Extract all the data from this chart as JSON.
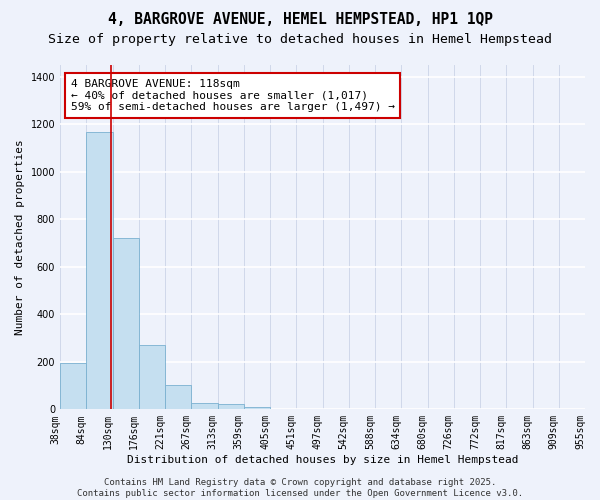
{
  "title": "4, BARGROVE AVENUE, HEMEL HEMPSTEAD, HP1 1QP",
  "subtitle": "Size of property relative to detached houses in Hemel Hempstead",
  "xlabel": "Distribution of detached houses by size in Hemel Hempstead",
  "ylabel": "Number of detached properties",
  "bar_heights": [
    197,
    1168,
    722,
    270,
    103,
    27,
    22,
    10,
    0,
    0,
    0,
    0,
    0,
    0,
    0,
    0,
    0,
    0,
    0,
    0
  ],
  "bin_labels": [
    "38sqm",
    "84sqm",
    "130sqm",
    "176sqm",
    "221sqm",
    "267sqm",
    "313sqm",
    "359sqm",
    "405sqm",
    "451sqm",
    "497sqm",
    "542sqm",
    "588sqm",
    "634sqm",
    "680sqm",
    "726sqm",
    "772sqm",
    "817sqm",
    "863sqm",
    "909sqm",
    "955sqm"
  ],
  "bar_color": "#c5dff0",
  "bar_edge_color": "#7ab0d0",
  "background_color": "#eef2fb",
  "grid_color_h": "#ffffff",
  "grid_color_v": "#d0d8ea",
  "annotation_text": "4 BARGROVE AVENUE: 118sqm\n← 40% of detached houses are smaller (1,017)\n59% of semi-detached houses are larger (1,497) →",
  "vline_x": 1.45,
  "vline_color": "#cc0000",
  "ylim": [
    0,
    1450
  ],
  "annotation_box_color": "#ffffff",
  "annotation_box_edge": "#cc0000",
  "footer_text": "Contains HM Land Registry data © Crown copyright and database right 2025.\nContains public sector information licensed under the Open Government Licence v3.0.",
  "title_fontsize": 10.5,
  "subtitle_fontsize": 9.5,
  "annotation_fontsize": 8,
  "footer_fontsize": 6.5,
  "ylabel_fontsize": 8,
  "xlabel_fontsize": 8,
  "tick_fontsize": 7
}
